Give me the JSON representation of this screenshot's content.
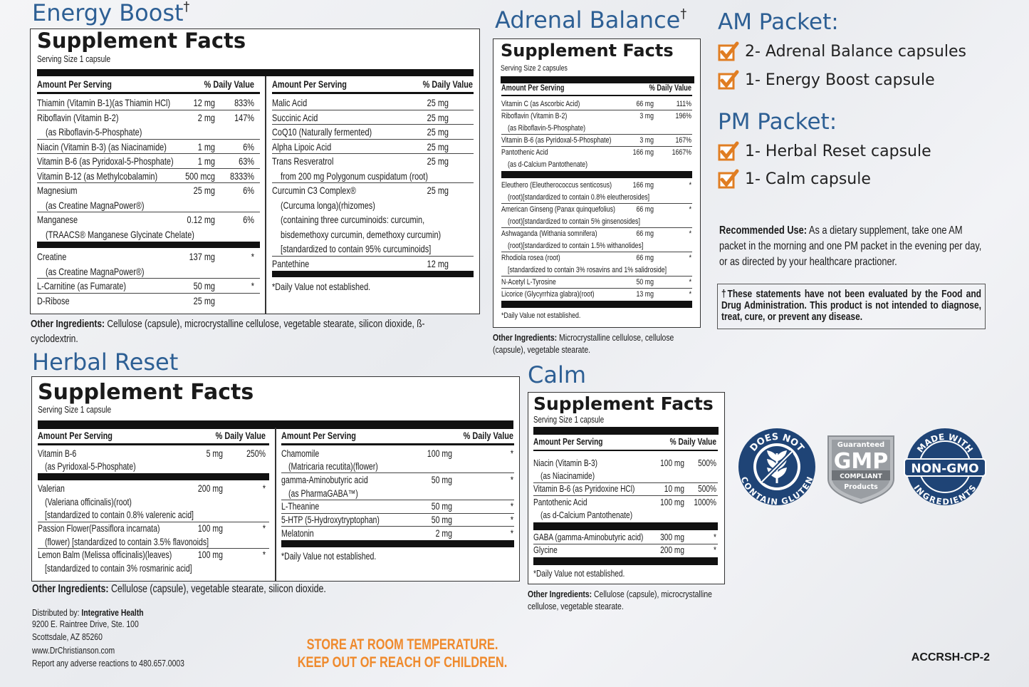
{
  "panels": {
    "energy_boost": {
      "title": "Energy Boost",
      "title_mark": "†",
      "facts_title": "Supplement Facts",
      "serving": "Serving Size 1 capsule",
      "columns": [
        {
          "header_amount": "Amount Per Serving",
          "header_dv": "% Daily Value",
          "groups": [
            [
              {
                "name": [
                  "Thiamin (Vitamin B-1)(as Thiamin HCl)"
                ],
                "amount": "12 mg",
                "dv": "833%"
              },
              {
                "name": [
                  "Riboflavin (Vitamin B-2)",
                  "(as Riboflavin-5-Phosphate)"
                ],
                "amount": "2 mg",
                "dv": "147%"
              },
              {
                "name": [
                  "Niacin (Vitamin B-3) (as Niacinamide)"
                ],
                "amount": "1 mg",
                "dv": "6%"
              },
              {
                "name": [
                  "Vitamin B-6 (as Pyridoxal-5-Phosphate)"
                ],
                "amount": "1 mg",
                "dv": "63%"
              },
              {
                "name": [
                  "Vitamin B-12 (as Methylcobalamin)"
                ],
                "amount": "500 mcg",
                "dv": "8333%"
              },
              {
                "name": [
                  "Magnesium",
                  "(as Creatine MagnaPower®)"
                ],
                "amount": "25 mg",
                "dv": "6%"
              },
              {
                "name": [
                  "Manganese",
                  "(TRAACS® Manganese Glycinate Chelate)"
                ],
                "amount": "0.12 mg",
                "dv": "6%"
              }
            ],
            [
              {
                "name": [
                  "Creatine",
                  "(as Creatine MagnaPower®)"
                ],
                "amount": "137 mg",
                "dv": "*"
              },
              {
                "name": [
                  "L-Carnitine (as Fumarate)"
                ],
                "amount": "50 mg",
                "dv": "*"
              },
              {
                "name": [
                  "D-Ribose"
                ],
                "amount": "25 mg"
              }
            ]
          ]
        },
        {
          "header_amount": "Amount Per Serving",
          "header_dv": "% Daily Value",
          "groups": [
            [
              {
                "name": [
                  "Malic Acid"
                ],
                "amount": "25 mg"
              },
              {
                "name": [
                  "Succinic Acid"
                ],
                "amount": "25 mg"
              },
              {
                "name": [
                  "CoQ10 (Naturally fermented)"
                ],
                "amount": "25 mg"
              },
              {
                "name": [
                  "Alpha Lipoic Acid"
                ],
                "amount": "25 mg"
              },
              {
                "name": [
                  "Trans Resveratrol",
                  "from 200 mg Polygonum cuspidatum (root)"
                ],
                "amount": "25 mg"
              },
              {
                "name": [
                  "Curcumin C3 Complex®",
                  "(Curcuma longa)(rhizomes)",
                  "(containing three curcuminoids: curcumin,",
                  "bisdemethoxy curcumin, demethoxy curcumin)",
                  "[standardized to contain 95% curcuminoids]"
                ],
                "amount": "25 mg"
              },
              {
                "name": [
                  "Pantethine"
                ],
                "amount": "12 mg"
              }
            ]
          ],
          "note": "*Daily Value not established."
        }
      ],
      "other_label": "Other Ingredients:",
      "other_text": "Cellulose (capsule), microcrystalline cellulose, vegetable stearate,  silicon dioxide, ß-cyclodextrin."
    },
    "adrenal_balance": {
      "title": "Adrenal Balance",
      "title_mark": "†",
      "facts_title": "Supplement Facts",
      "serving": "Serving Size 2 capsules",
      "columns": [
        {
          "header_amount": "Amount Per Serving",
          "header_dv": "% Daily Value",
          "groups": [
            [
              {
                "name": [
                  "Vitamin C (as Ascorbic Acid)"
                ],
                "amount": "66 mg",
                "dv": "111%"
              },
              {
                "name": [
                  "Riboflavin (Vitamin B-2)",
                  "(as Riboflavin-5-Phosphate)"
                ],
                "amount": "3 mg",
                "dv": "196%"
              },
              {
                "name": [
                  "Vitamin B-6 (as Pyridoxal-5-Phosphate)"
                ],
                "amount": "3 mg",
                "dv": "167%"
              },
              {
                "name": [
                  "Pantothenic Acid",
                  "(as d-Calcium Pantothenate)"
                ],
                "amount": "166 mg",
                "dv": "1667%"
              }
            ],
            [
              {
                "name": [
                  "Eleuthero (Eleutherococcus senticosus)",
                  "(root)[standardized to contain 0.8% eleutherosides]"
                ],
                "amount": "166 mg",
                "dv": "*"
              },
              {
                "name": [
                  "American Ginseng (Panax quinquefolius)",
                  "(root)[standardized to contain 5% ginsenosides]"
                ],
                "amount": "66 mg",
                "dv": "*"
              },
              {
                "name": [
                  "Ashwaganda (Withania somnifera)",
                  "(root)[standardized to contain 1.5% withanolides]"
                ],
                "amount": "66 mg",
                "dv": "*"
              },
              {
                "name": [
                  "Rhodiola rosea (root)",
                  "[standardized to contain 3% rosavins and 1% salidroside]"
                ],
                "amount": "66 mg",
                "dv": "*"
              },
              {
                "name": [
                  "N-Acetyl L-Tyrosine"
                ],
                "amount": "50 mg",
                "dv": "*"
              },
              {
                "name": [
                  "Licorice (Glycyrrhiza glabra)(root)"
                ],
                "amount": "13 mg",
                "dv": "*"
              }
            ]
          ],
          "note": "*Daily Value not established."
        }
      ],
      "other_label": "Other Ingredients:",
      "other_text": "Microcrystalline cellulose, cellulose (capsule), vegetable stearate."
    },
    "herbal_reset": {
      "title": "Herbal Reset",
      "facts_title": "Supplement Facts",
      "serving": "Serving Size 1 capsule",
      "columns": [
        {
          "header_amount": "Amount Per Serving",
          "header_dv": "% Daily Value",
          "groups": [
            [
              {
                "name": [
                  "Vitamin B-6",
                  "(as Pyridoxal-5-Phosphate)"
                ],
                "amount": "5 mg",
                "dv": "250%"
              }
            ],
            [
              {
                "name": [
                  "Valerian",
                  "(Valeriana officinalis)(root)",
                  "[standardized to contain 0.8% valerenic acid]"
                ],
                "amount": "200 mg",
                "dv": "*"
              },
              {
                "name": [
                  "Passion Flower(Passiflora incarnata)",
                  "(flower) [standardized to contain 3.5% flavonoids]"
                ],
                "amount": "100 mg",
                "dv": "*"
              },
              {
                "name": [
                  "Lemon Balm (Melissa officinalis)(leaves)",
                  "[standardized to contain 3% rosmarinic acid]"
                ],
                "amount": "100 mg",
                "dv": "*"
              }
            ]
          ]
        },
        {
          "header_amount": "Amount Per Serving",
          "header_dv": "% Daily Value",
          "groups": [
            [
              {
                "name": [
                  "Chamomile",
                  "(Matricaria recutita)(flower)"
                ],
                "amount": "100 mg",
                "dv": "*"
              },
              {
                "name": [
                  "gamma-Aminobutyric acid",
                  "(as PharmaGABA™)"
                ],
                "amount": "50 mg",
                "dv": "*"
              },
              {
                "name": [
                  "L-Theanine"
                ],
                "amount": "50 mg",
                "dv": "*"
              },
              {
                "name": [
                  "5-HTP (5-Hydroxytryptophan)"
                ],
                "amount": "50 mg",
                "dv": "*"
              },
              {
                "name": [
                  "Melatonin"
                ],
                "amount": "2 mg",
                "dv": "*"
              }
            ]
          ],
          "note": "*Daily Value not established."
        }
      ],
      "other_label": "Other Ingredients:",
      "other_text": "Cellulose (capsule), vegetable stearate, silicon dioxide."
    },
    "calm": {
      "title": "Calm",
      "facts_title": "Supplement Facts",
      "serving": "Serving Size 1 capsule",
      "columns": [
        {
          "header_amount": "Amount Per Serving",
          "header_dv": "% Daily Value",
          "groups": [
            [
              {
                "name": [
                  "Niacin (Vitamin B-3)",
                  "(as Niacinamide)"
                ],
                "amount": "100 mg",
                "dv": "500%"
              },
              {
                "name": [
                  "Vitamin B-6 (as Pyridoxine HCl)"
                ],
                "amount": "10 mg",
                "dv": "500%"
              },
              {
                "name": [
                  "Pantothenic Acid",
                  "(as d-Calcium Pantothenate)"
                ],
                "amount": "100 mg",
                "dv": "1000%"
              }
            ],
            [
              {
                "name": [
                  "GABA (gamma-Aminobutyric acid)"
                ],
                "amount": "300 mg",
                "dv": "*"
              },
              {
                "name": [
                  "Glycine"
                ],
                "amount": "200 mg",
                "dv": "*"
              }
            ]
          ],
          "note": "*Daily Value not established."
        }
      ],
      "other_label": "Other Ingredients:",
      "other_text": "Cellulose (capsule), microcrystalline cellulose, vegetable stearate."
    }
  },
  "packets": [
    {
      "title": "AM Packet:",
      "items": [
        "2- Adrenal Balance capsules",
        "1- Energy Boost capsule"
      ]
    },
    {
      "title": "PM Packet:",
      "items": [
        "1- Herbal Reset capsule",
        "1- Calm capsule"
      ]
    }
  ],
  "recommended": {
    "label": "Recommended Use:",
    "text": "As a dietary supplement, take one AM packet in the  morning and one PM packet in the evening per day, or as directed by your healthcare practioner."
  },
  "disclaimer": "†These statements have not been evaluated by the Food and Drug Administration. This product is not intended to diagnose, treat, cure, or prevent any disease.",
  "badges": {
    "gluten": {
      "top": "DOES NOT",
      "bottom": "CONTAIN GLUTEN"
    },
    "gmp": {
      "top": "Guaranteed",
      "main": "GMP",
      "band": "COMPLIANT",
      "bottom": "Products"
    },
    "non_gmo": {
      "top": "MADE WITH",
      "main": "NON-GMO",
      "bottom": "INGREDIENTS"
    }
  },
  "distributor": {
    "label": "Distributed by:",
    "name": "Integrative Health",
    "lines": [
      "9200 E. Raintree Drive, Ste. 100",
      "Scottsdale, AZ  85260",
      "www.DrChristianson.com",
      "Report any adverse reactions to 480.657.0003"
    ]
  },
  "storage": [
    "STORE AT ROOM TEMPERATURE.",
    "KEEP OUT OF REACH OF CHILDREN."
  ],
  "code": "ACCRSH-CP-2"
}
